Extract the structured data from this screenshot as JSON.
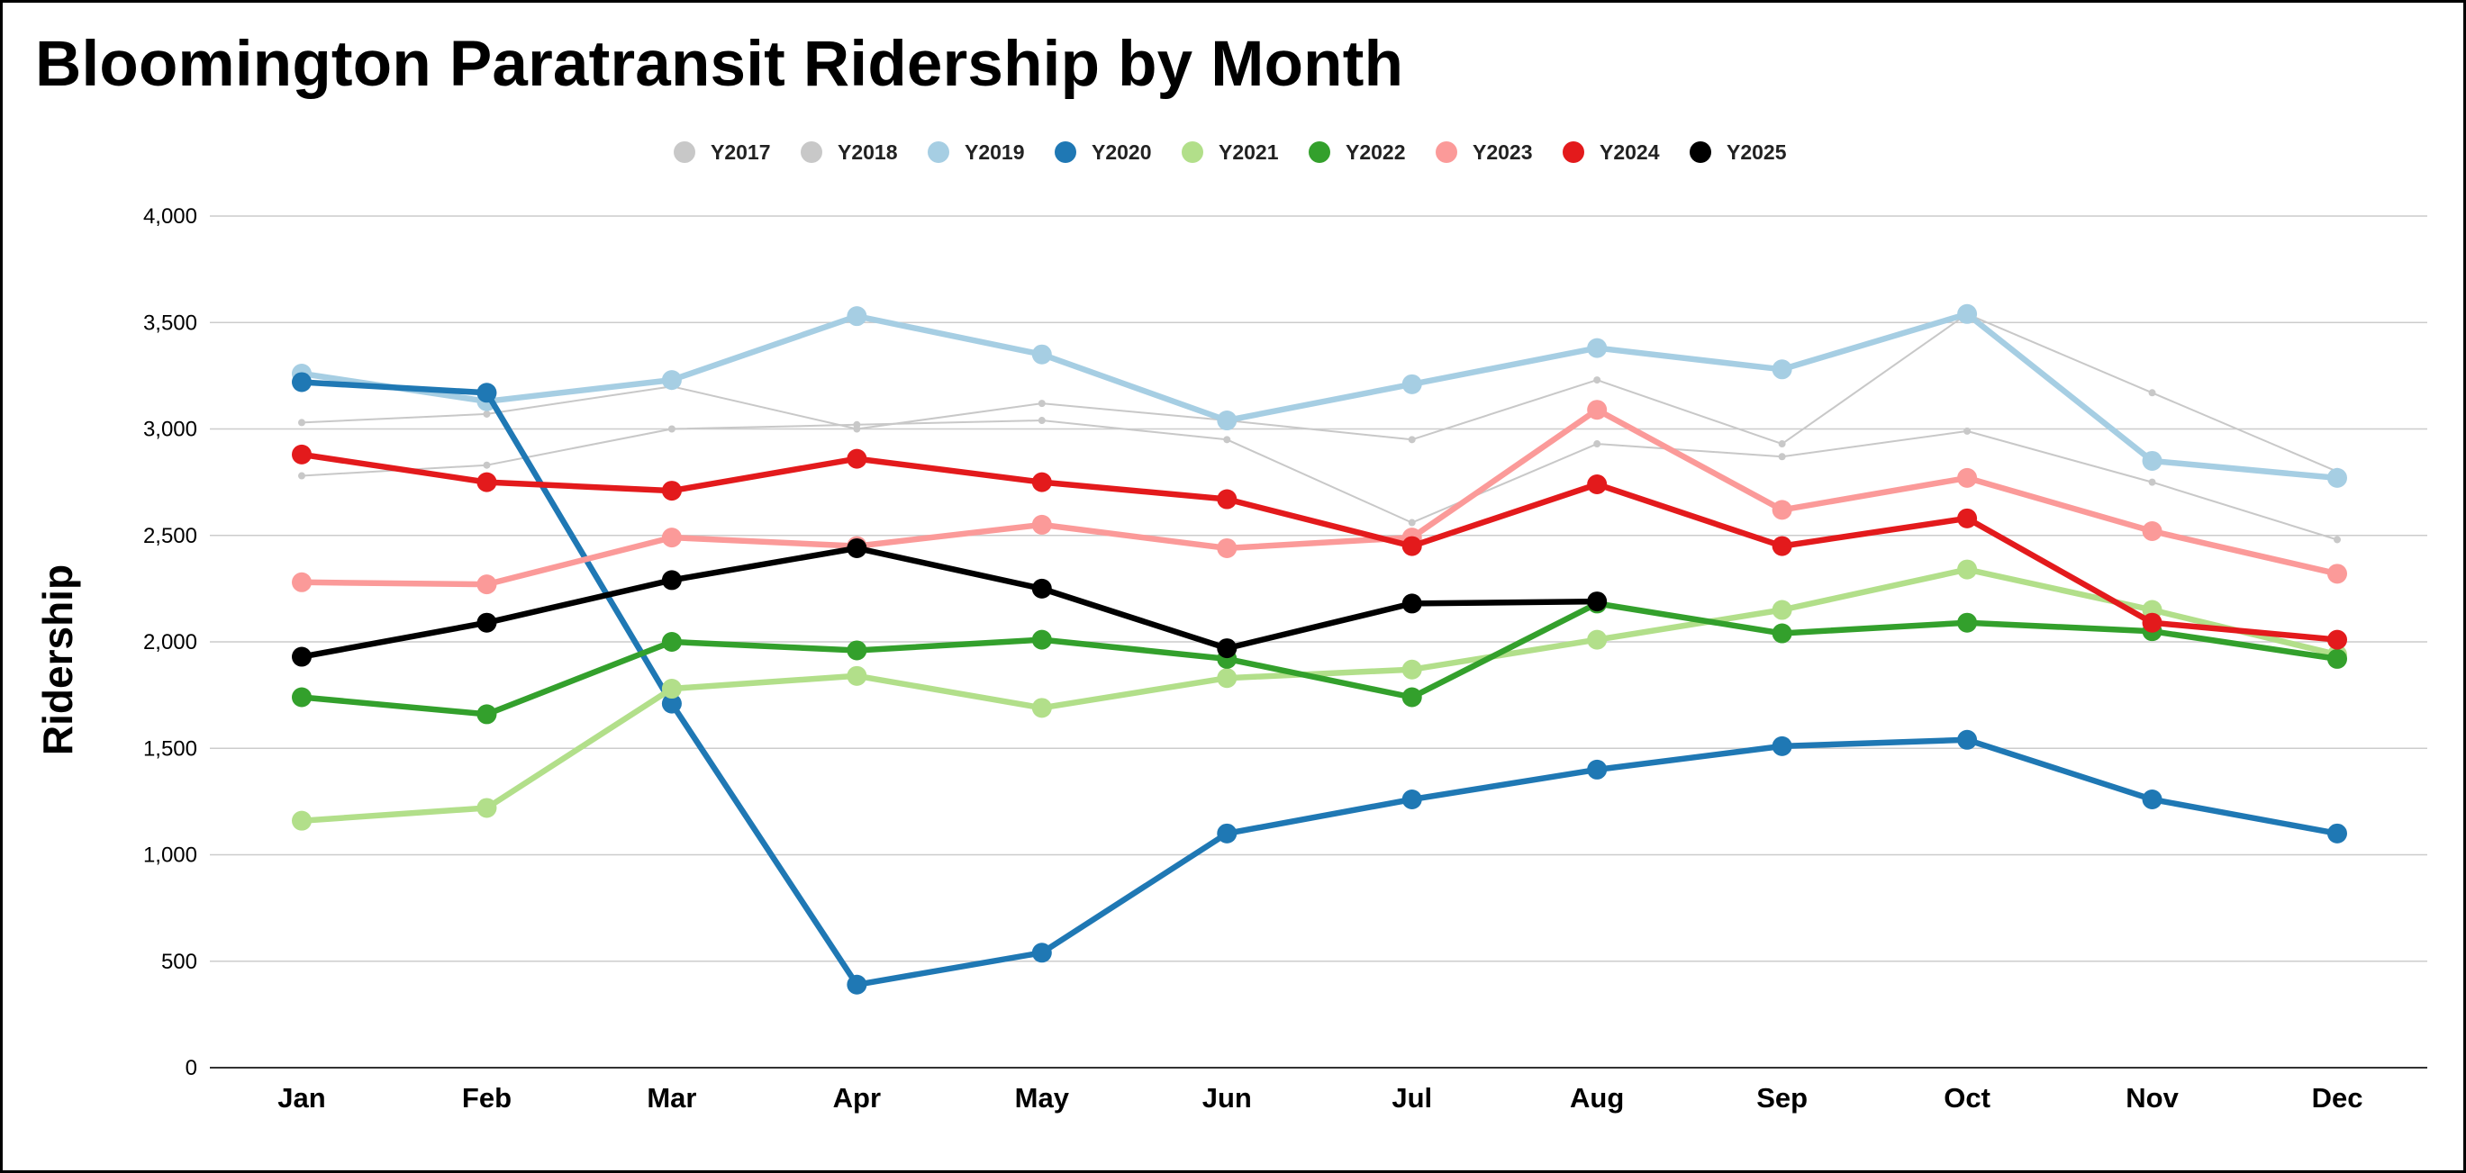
{
  "chart_data": {
    "type": "line",
    "title": "Bloomington Paratransit Ridership by Month",
    "xlabel": "",
    "ylabel": "Ridership",
    "ylim": [
      0,
      4000
    ],
    "yticks": [
      0,
      500,
      1000,
      1500,
      2000,
      2500,
      3000,
      3500,
      4000
    ],
    "ytick_labels": [
      "0",
      "500",
      "1,000",
      "1,500",
      "2,000",
      "2,500",
      "3,000",
      "3,500",
      "4,000"
    ],
    "grid": true,
    "legend_position": "top-center",
    "categories": [
      "Jan",
      "Feb",
      "Mar",
      "Apr",
      "May",
      "Jun",
      "Jul",
      "Aug",
      "Sep",
      "Oct",
      "Nov",
      "Dec"
    ],
    "series": [
      {
        "name": "Y2017",
        "color": "#c8c8c8",
        "emphasis": "thin",
        "values": [
          2780,
          2830,
          3000,
          3020,
          3040,
          2950,
          2560,
          2930,
          2870,
          2990,
          2750,
          2480
        ]
      },
      {
        "name": "Y2018",
        "color": "#c8c8c8",
        "emphasis": "thin",
        "values": [
          3030,
          3070,
          3200,
          3000,
          3120,
          3040,
          2950,
          3230,
          2930,
          3540,
          3170,
          2800
        ]
      },
      {
        "name": "Y2019",
        "color": "#a6cee3",
        "emphasis": "thick",
        "values": [
          3260,
          3130,
          3230,
          3530,
          3350,
          3040,
          3210,
          3380,
          3280,
          3540,
          2850,
          2770
        ]
      },
      {
        "name": "Y2020",
        "color": "#1f78b4",
        "emphasis": "thick",
        "values": [
          3220,
          3170,
          1710,
          390,
          540,
          1100,
          1260,
          1400,
          1510,
          1540,
          1260,
          1100
        ]
      },
      {
        "name": "Y2021",
        "color": "#b2df8a",
        "emphasis": "thick",
        "values": [
          1160,
          1220,
          1780,
          1840,
          1690,
          1830,
          1870,
          2010,
          2150,
          2340,
          2150,
          1940
        ]
      },
      {
        "name": "Y2022",
        "color": "#33a02c",
        "emphasis": "thick",
        "values": [
          1740,
          1660,
          2000,
          1960,
          2010,
          1920,
          1740,
          2180,
          2040,
          2090,
          2050,
          1920
        ]
      },
      {
        "name": "Y2023",
        "color": "#fb9a99",
        "emphasis": "thick",
        "values": [
          2280,
          2270,
          2490,
          2450,
          2550,
          2440,
          2490,
          3090,
          2620,
          2770,
          2520,
          2320
        ]
      },
      {
        "name": "Y2024",
        "color": "#e31a1c",
        "emphasis": "thick",
        "values": [
          2880,
          2750,
          2710,
          2860,
          2750,
          2670,
          2450,
          2740,
          2450,
          2580,
          2090,
          2010
        ]
      },
      {
        "name": "Y2025",
        "color": "#000000",
        "emphasis": "thick",
        "values": [
          1930,
          2090,
          2290,
          2440,
          2250,
          1970,
          2180,
          2190,
          null,
          null,
          null,
          null
        ]
      }
    ]
  }
}
